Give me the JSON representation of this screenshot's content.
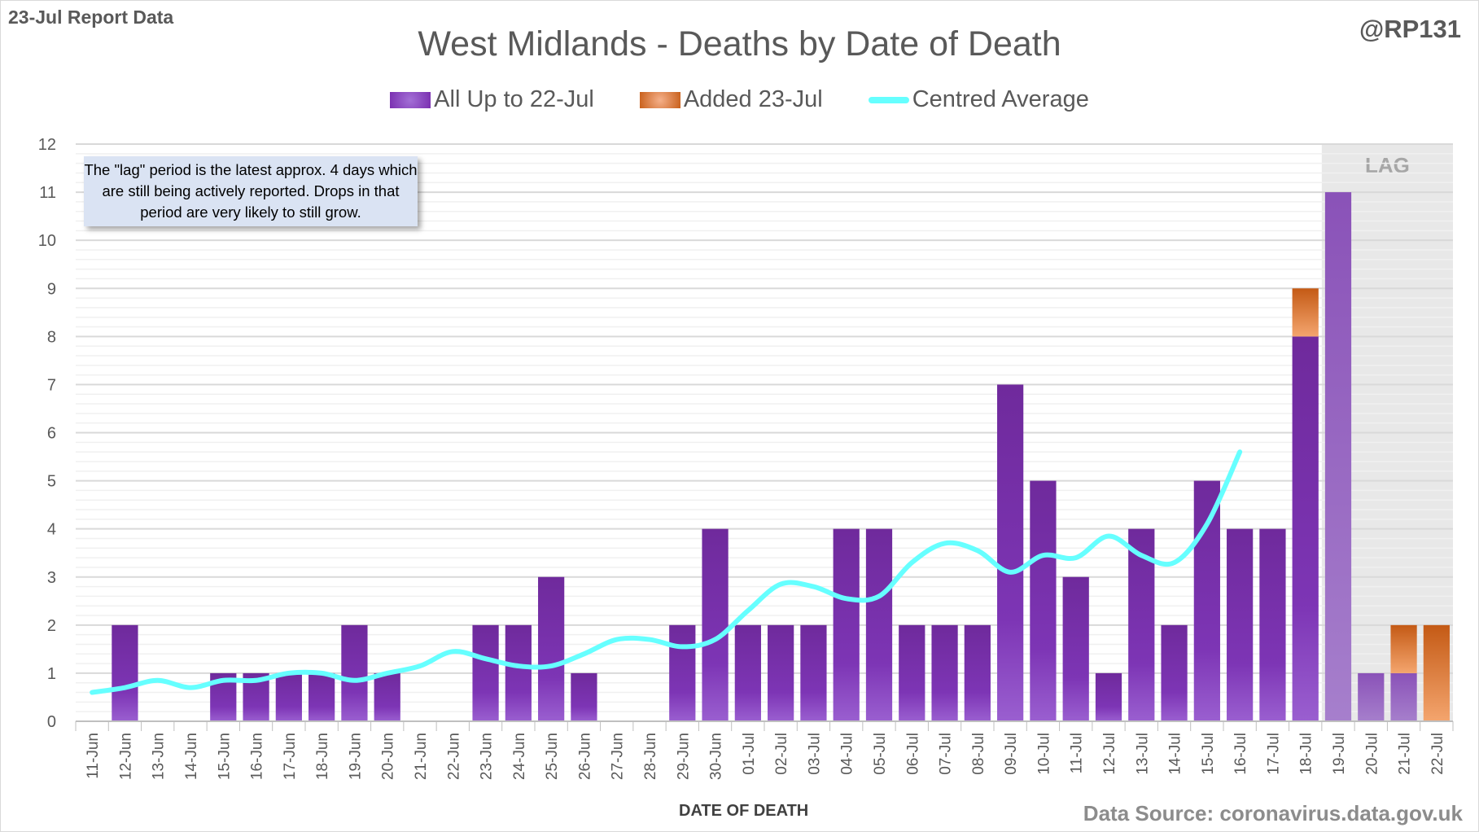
{
  "header": {
    "report_label": "23-Jul Report Data",
    "handle": "@RP131"
  },
  "chart_data": {
    "type": "bar",
    "title": "West Midlands - Deaths by Date of Death",
    "xlabel": "DATE OF DEATH",
    "ylabel": "",
    "ylim": [
      0,
      12
    ],
    "yticks": [
      "0",
      "1",
      "2",
      "3",
      "4",
      "5",
      "6",
      "7",
      "8",
      "9",
      "10",
      "11",
      "12"
    ],
    "grid": true,
    "legend_position": "top-center",
    "categories": [
      "11-Jun",
      "12-Jun",
      "13-Jun",
      "14-Jun",
      "15-Jun",
      "16-Jun",
      "17-Jun",
      "18-Jun",
      "19-Jun",
      "20-Jun",
      "21-Jun",
      "22-Jun",
      "23-Jun",
      "24-Jun",
      "25-Jun",
      "26-Jun",
      "27-Jun",
      "28-Jun",
      "29-Jun",
      "30-Jun",
      "01-Jul",
      "02-Jul",
      "03-Jul",
      "04-Jul",
      "05-Jul",
      "06-Jul",
      "07-Jul",
      "08-Jul",
      "09-Jul",
      "10-Jul",
      "11-Jul",
      "12-Jul",
      "13-Jul",
      "14-Jul",
      "15-Jul",
      "16-Jul",
      "17-Jul",
      "18-Jul",
      "19-Jul",
      "20-Jul",
      "21-Jul",
      "22-Jul"
    ],
    "series": [
      {
        "name": "All Up to 22-Jul",
        "type": "bar",
        "color": "#7030a0",
        "values": [
          0,
          2,
          0,
          0,
          1,
          1,
          1,
          1,
          2,
          1,
          0,
          0,
          2,
          2,
          3,
          1,
          0,
          0,
          2,
          4,
          2,
          2,
          2,
          4,
          4,
          2,
          2,
          2,
          7,
          5,
          3,
          1,
          4,
          2,
          5,
          4,
          4,
          8,
          11,
          1,
          1,
          0
        ]
      },
      {
        "name": "Added 23-Jul",
        "type": "bar",
        "color": "#e07a30",
        "values": [
          0,
          0,
          0,
          0,
          0,
          0,
          0,
          0,
          0,
          0,
          0,
          0,
          0,
          0,
          0,
          0,
          0,
          0,
          0,
          0,
          0,
          0,
          0,
          0,
          0,
          0,
          0,
          0,
          0,
          0,
          0,
          0,
          0,
          0,
          0,
          0,
          0,
          1,
          0,
          0,
          1,
          2
        ]
      },
      {
        "name": "Centred Average",
        "type": "line",
        "color": "#66ffff",
        "values": [
          0.6,
          0.7,
          0.85,
          0.7,
          0.85,
          0.85,
          1.0,
          1.0,
          0.85,
          1.0,
          1.15,
          1.45,
          1.3,
          1.15,
          1.15,
          1.4,
          1.7,
          1.7,
          1.55,
          1.7,
          2.3,
          2.85,
          2.8,
          2.55,
          2.6,
          3.3,
          3.7,
          3.55,
          3.1,
          3.45,
          3.4,
          3.85,
          3.45,
          3.3,
          4.1,
          5.6,
          null,
          null,
          null,
          null,
          null,
          null
        ]
      }
    ],
    "lag": {
      "label": "LAG",
      "start": "19-Jul",
      "end": "22-Jul"
    },
    "annotation": "The \"lag\" period is the latest approx. 4 days which are still being actively reported.  Drops in that period are very likely to still grow."
  },
  "footer": {
    "source": "Data Source: coronavirus.data.gov.uk"
  }
}
